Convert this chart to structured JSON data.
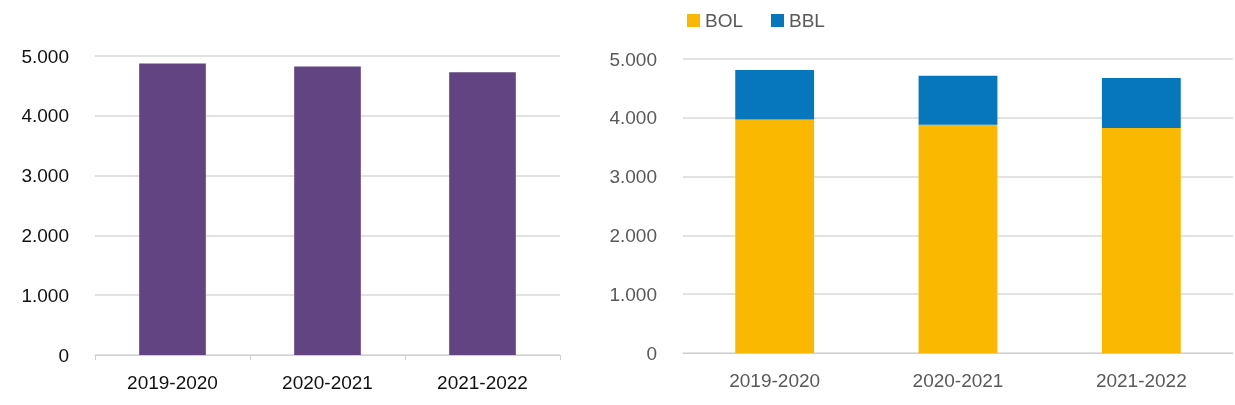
{
  "chart_data": [
    {
      "type": "bar",
      "categories": [
        "2019-2020",
        "2020-2021",
        "2021-2022"
      ],
      "values": [
        4875,
        4825,
        4730
      ],
      "color": "#614481",
      "ylim": [
        0,
        5000
      ],
      "yticks": [
        {
          "value": 0,
          "label": "0"
        },
        {
          "value": 1000,
          "label": "1.000"
        },
        {
          "value": 2000,
          "label": "2.000"
        },
        {
          "value": 3000,
          "label": "3.000"
        },
        {
          "value": 4000,
          "label": "4.000"
        },
        {
          "value": 5000,
          "label": "5.000"
        }
      ],
      "grid": "y",
      "legend": false
    },
    {
      "type": "bar",
      "categories": [
        "2019-2020",
        "2020-2021",
        "2021-2022"
      ],
      "stacked": true,
      "series": [
        {
          "name": "BOL",
          "color": "#fab800",
          "values": [
            3970,
            3880,
            3825
          ]
        },
        {
          "name": "BBL",
          "color": "#0676bd",
          "values": [
            845,
            835,
            850
          ]
        }
      ],
      "ylim": [
        0,
        5000
      ],
      "yticks": [
        {
          "value": 0,
          "label": "0"
        },
        {
          "value": 1000,
          "label": "1.000"
        },
        {
          "value": 2000,
          "label": "2.000"
        },
        {
          "value": 3000,
          "label": "3.000"
        },
        {
          "value": 4000,
          "label": "4.000"
        },
        {
          "value": 5000,
          "label": "5.000"
        }
      ],
      "grid": "y",
      "legend": "top left"
    }
  ]
}
